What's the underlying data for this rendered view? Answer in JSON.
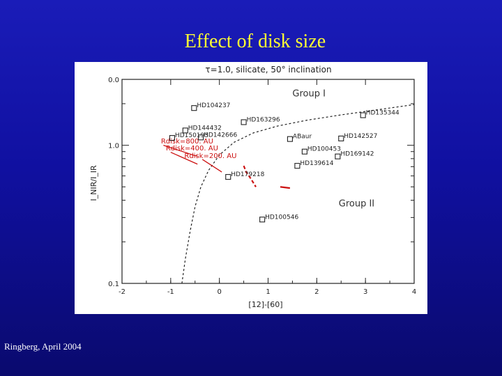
{
  "slide": {
    "title": "Effect of disk size",
    "footer": "Ringberg, April 2004"
  },
  "chart_data": {
    "type": "scatter",
    "title": "τ=1.0, silicate, 50° inclination",
    "xlabel": "[12]-[60]",
    "ylabel": "I_NIR/I_IR",
    "xlim": [
      -2,
      4
    ],
    "ylim": [
      0.1,
      3
    ],
    "yscale": "log",
    "x_ticks": [
      -2,
      -1,
      0,
      1,
      2,
      3,
      4
    ],
    "x_tick_labels": [
      "-2",
      "-1",
      "0",
      "1",
      "2",
      "3",
      "4"
    ],
    "y_ticks": [
      0.1,
      1.0
    ],
    "y_tick_labels": [
      "0.1",
      "1.0"
    ],
    "y_top_label": "0.0",
    "region_labels": [
      {
        "text": "Group I",
        "x": 1.5,
        "y": 2.26
      },
      {
        "text": "Group II",
        "x": 2.45,
        "y": 0.36
      }
    ],
    "stars": [
      {
        "name": "HD104237",
        "x": -0.52,
        "y": 1.86
      },
      {
        "name": "HD163296",
        "x": 0.5,
        "y": 1.47
      },
      {
        "name": "HD135344",
        "x": 2.95,
        "y": 1.65
      },
      {
        "name": "HD144432",
        "x": -0.7,
        "y": 1.28
      },
      {
        "name": "HD150193",
        "x": -0.97,
        "y": 1.13
      },
      {
        "name": "HD142666",
        "x": -0.38,
        "y": 1.14
      },
      {
        "name": "ABaur",
        "x": 1.45,
        "y": 1.11
      },
      {
        "name": "HD142527",
        "x": 2.5,
        "y": 1.12
      },
      {
        "name": "HD100453",
        "x": 1.75,
        "y": 0.9
      },
      {
        "name": "HD169142",
        "x": 2.43,
        "y": 0.83
      },
      {
        "name": "HD139614",
        "x": 1.6,
        "y": 0.71
      },
      {
        "name": "HD179218",
        "x": 0.18,
        "y": 0.59
      },
      {
        "name": "HD100546",
        "x": 0.88,
        "y": 0.29
      }
    ],
    "boundary_curve": {
      "x": [
        -0.77,
        -0.7,
        -0.6,
        -0.5,
        -0.38,
        -0.22,
        0.0,
        0.3,
        0.7,
        1.2,
        1.8,
        2.5,
        3.3,
        4.0
      ],
      "y": [
        0.1,
        0.15,
        0.24,
        0.36,
        0.5,
        0.66,
        0.85,
        1.05,
        1.23,
        1.38,
        1.52,
        1.66,
        1.82,
        1.97
      ]
    },
    "model_labels": [
      {
        "text": "Rdisk=800. AU",
        "x": -1.2,
        "y": 1.03
      },
      {
        "text": "Rdisk=400. AU",
        "x": -1.1,
        "y": 0.92
      },
      {
        "text": "Rdisk=200. AU",
        "x": -0.72,
        "y": 0.81
      }
    ],
    "model_track": {
      "x": [
        0.5,
        0.55,
        0.65,
        0.75
      ],
      "y": [
        0.71,
        0.64,
        0.57,
        0.5
      ],
      "end_x": [
        1.25,
        1.45
      ],
      "end_y": [
        0.5,
        0.49
      ]
    },
    "pointer_lines": [
      {
        "x": [
          -1.15,
          -0.45
        ],
        "y": [
          1.0,
          0.83
        ]
      },
      {
        "x": [
          -1.0,
          -0.45
        ],
        "y": [
          0.89,
          0.73
        ]
      },
      {
        "x": [
          -0.35,
          0.05
        ],
        "y": [
          0.79,
          0.64
        ]
      }
    ],
    "colors": {
      "markers": "#222222",
      "models": "#cc1111",
      "curve": "#222222"
    },
    "legend": false,
    "grid": false
  }
}
